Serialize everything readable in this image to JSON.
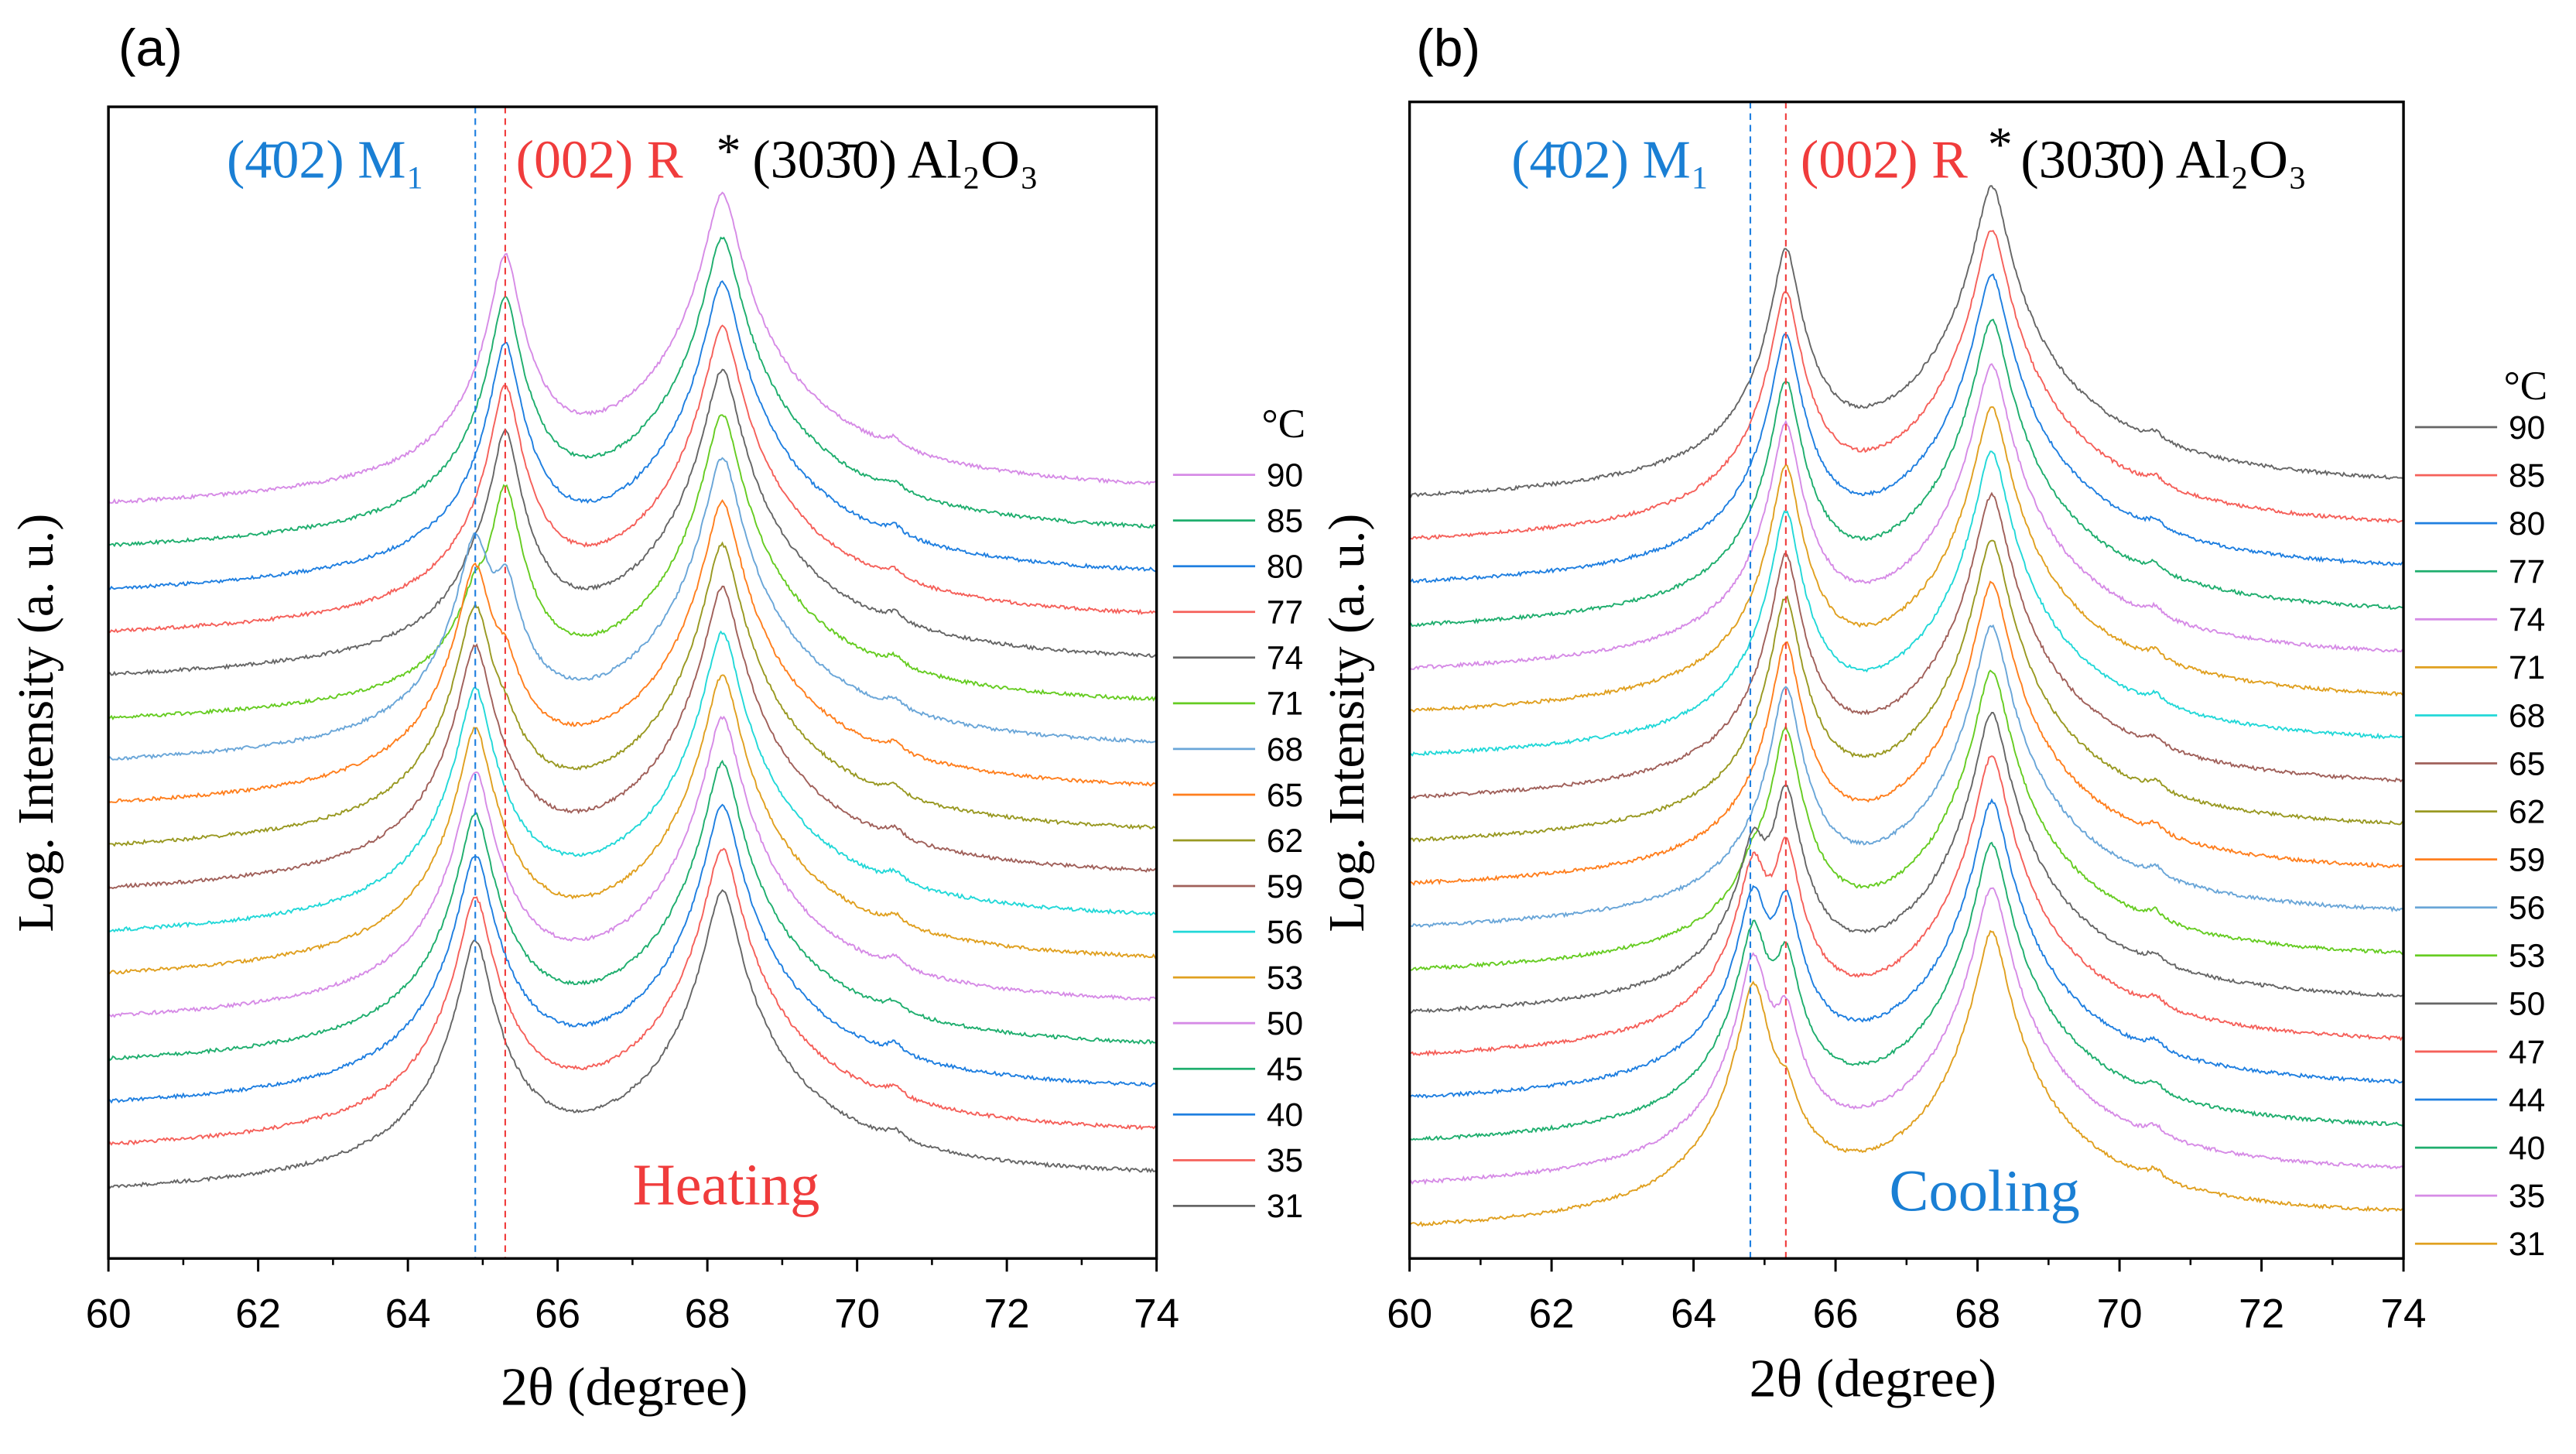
{
  "chart_data": [
    {
      "type": "line",
      "panel_label": "(a)",
      "xlabel": "2θ (degree)",
      "ylabel": "Log. Intensity (a. u.)",
      "xlim": [
        60,
        74
      ],
      "xticks": [
        "60",
        "62",
        "64",
        "66",
        "68",
        "70",
        "72",
        "74"
      ],
      "grid": false,
      "legend_title": "°C",
      "legend_position": "right",
      "annotations": {
        "m1": "(4̄02) M₁",
        "r": "(002) R",
        "star": "*",
        "al": "(303̄0) Al₂O₃",
        "mode": "Heating"
      },
      "reference_lines": {
        "m1_position": 64.9,
        "r_position": 65.3
      },
      "peak_positions": {
        "m1": 64.9,
        "r": 65.3,
        "al2o3": 68.2
      },
      "series": [
        {
          "name": "90",
          "color": "#d68be6",
          "m1": 0,
          "r": 110,
          "al": 330
        },
        {
          "name": "85",
          "color": "#1fae6e",
          "m1": 0,
          "r": 110,
          "al": 320
        },
        {
          "name": "80",
          "color": "#1f7fe0",
          "m1": 0,
          "r": 105,
          "al": 310
        },
        {
          "name": "77",
          "color": "#f5605a",
          "m1": 0,
          "r": 105,
          "al": 300
        },
        {
          "name": "74",
          "color": "#666666",
          "m1": 2,
          "r": 100,
          "al": 300
        },
        {
          "name": "71",
          "color": "#66cc22",
          "m1": 6,
          "r": 80,
          "al": 290
        },
        {
          "name": "68",
          "color": "#6aa6d8",
          "m1": 70,
          "r": 30,
          "al": 290
        },
        {
          "name": "65",
          "color": "#ff7f1e",
          "m1": 90,
          "r": 10,
          "al": 280
        },
        {
          "name": "62",
          "color": "#999922",
          "m1": 95,
          "r": 4,
          "al": 280
        },
        {
          "name": "59",
          "color": "#a0605a",
          "m1": 100,
          "r": 0,
          "al": 280
        },
        {
          "name": "56",
          "color": "#22d8d8",
          "m1": 100,
          "r": 0,
          "al": 270
        },
        {
          "name": "53",
          "color": "#e0a020",
          "m1": 105,
          "r": 0,
          "al": 270
        },
        {
          "name": "50",
          "color": "#d68be6",
          "m1": 105,
          "r": 0,
          "al": 270
        },
        {
          "name": "45",
          "color": "#1fae6e",
          "m1": 105,
          "r": 0,
          "al": 260
        },
        {
          "name": "40",
          "color": "#1f7fe0",
          "m1": 110,
          "r": 0,
          "al": 260
        },
        {
          "name": "35",
          "color": "#f5605a",
          "m1": 110,
          "r": 0,
          "al": 260
        },
        {
          "name": "31",
          "color": "#666666",
          "m1": 110,
          "r": 0,
          "al": 260
        }
      ]
    },
    {
      "type": "line",
      "panel_label": "(b)",
      "xlabel": "2θ (degree)",
      "ylabel": "Log. Intensity (a. u.)",
      "xlim": [
        60,
        74
      ],
      "xticks": [
        "60",
        "62",
        "64",
        "66",
        "68",
        "70",
        "72",
        "74"
      ],
      "grid": false,
      "legend_title": "°C",
      "legend_position": "right",
      "annotations": {
        "m1": "(4̄02) M₁",
        "r": "(002) R",
        "star": "*",
        "al": "(303̄0) Al₂O₃",
        "mode": "Cooling"
      },
      "reference_lines": {
        "m1_position": 64.8,
        "r_position": 65.3
      },
      "peak_positions": {
        "m1": 64.85,
        "r": 65.3,
        "al2o3": 68.2
      },
      "series": [
        {
          "name": "90",
          "color": "#666666",
          "m1": 0,
          "r": 110,
          "al": 340
        },
        {
          "name": "85",
          "color": "#f5605a",
          "m1": 0,
          "r": 110,
          "al": 330
        },
        {
          "name": "80",
          "color": "#1f7fe0",
          "m1": 0,
          "r": 110,
          "al": 320
        },
        {
          "name": "77",
          "color": "#1fae6e",
          "m1": 0,
          "r": 105,
          "al": 310
        },
        {
          "name": "74",
          "color": "#d68be6",
          "m1": 0,
          "r": 105,
          "al": 300
        },
        {
          "name": "71",
          "color": "#e0a020",
          "m1": 0,
          "r": 105,
          "al": 300
        },
        {
          "name": "68",
          "color": "#22d8d8",
          "m1": 0,
          "r": 100,
          "al": 290
        },
        {
          "name": "65",
          "color": "#a0605a",
          "m1": 0,
          "r": 100,
          "al": 290
        },
        {
          "name": "62",
          "color": "#999922",
          "m1": 0,
          "r": 100,
          "al": 280
        },
        {
          "name": "59",
          "color": "#ff7f1e",
          "m1": 0,
          "r": 95,
          "al": 280
        },
        {
          "name": "56",
          "color": "#6aa6d8",
          "m1": 0,
          "r": 95,
          "al": 280
        },
        {
          "name": "53",
          "color": "#66cc22",
          "m1": 3,
          "r": 95,
          "al": 270
        },
        {
          "name": "50",
          "color": "#666666",
          "m1": 25,
          "r": 70,
          "al": 270
        },
        {
          "name": "47",
          "color": "#f5605a",
          "m1": 40,
          "r": 55,
          "al": 270
        },
        {
          "name": "44",
          "color": "#1f7fe0",
          "m1": 50,
          "r": 45,
          "al": 260
        },
        {
          "name": "40",
          "color": "#1fae6e",
          "m1": 60,
          "r": 35,
          "al": 260
        },
        {
          "name": "35",
          "color": "#d68be6",
          "m1": 75,
          "r": 25,
          "al": 260
        },
        {
          "name": "31",
          "color": "#e0a020",
          "m1": 100,
          "r": 8,
          "al": 250
        }
      ]
    }
  ]
}
